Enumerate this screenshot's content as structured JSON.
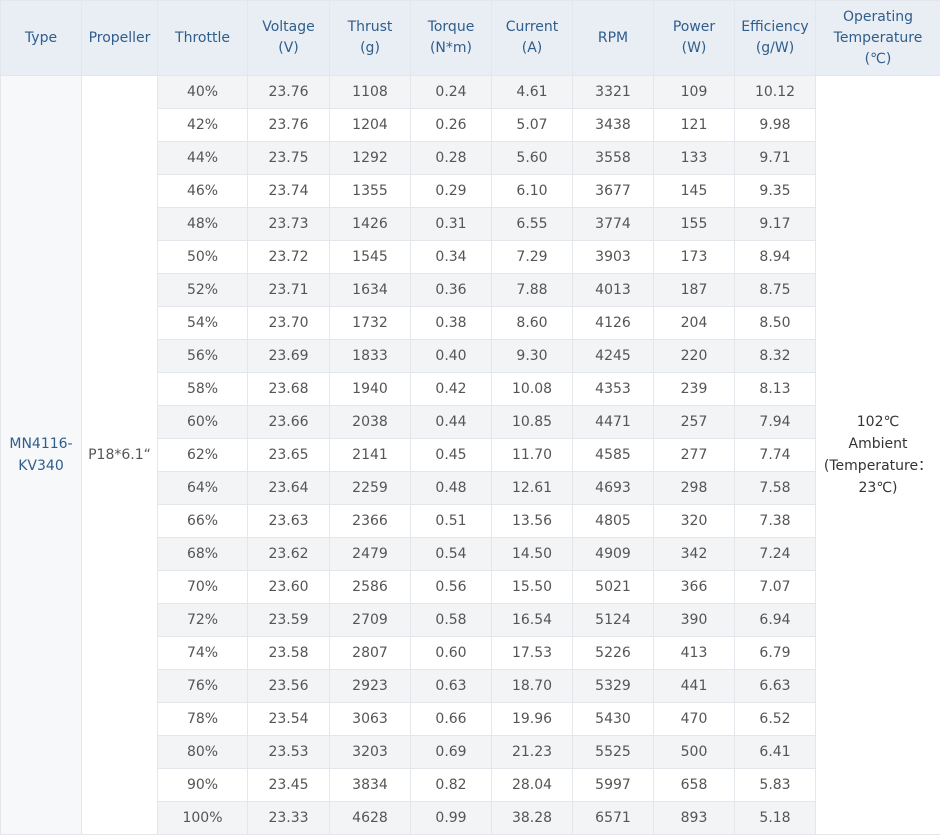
{
  "headers": [
    "Type",
    "Propeller",
    "Throttle",
    "Voltage\n(V)",
    "Thrust\n(g)",
    "Torque\n(N*m)",
    "Current\n(A)",
    "RPM",
    "Power\n(W)",
    "Efficiency\n(g/W)",
    "Operating\nTemperature\n(℃)"
  ],
  "type": "MN4116-\nKV340",
  "propeller": "P18*6.1“",
  "temperature": "102℃\nAmbient\n(Temperature：\n23℃)",
  "rows": [
    [
      "40%",
      "23.76",
      "1108",
      "0.24",
      "4.61",
      "3321",
      "109",
      "10.12"
    ],
    [
      "42%",
      "23.76",
      "1204",
      "0.26",
      "5.07",
      "3438",
      "121",
      "9.98"
    ],
    [
      "44%",
      "23.75",
      "1292",
      "0.28",
      "5.60",
      "3558",
      "133",
      "9.71"
    ],
    [
      "46%",
      "23.74",
      "1355",
      "0.29",
      "6.10",
      "3677",
      "145",
      "9.35"
    ],
    [
      "48%",
      "23.73",
      "1426",
      "0.31",
      "6.55",
      "3774",
      "155",
      "9.17"
    ],
    [
      "50%",
      "23.72",
      "1545",
      "0.34",
      "7.29",
      "3903",
      "173",
      "8.94"
    ],
    [
      "52%",
      "23.71",
      "1634",
      "0.36",
      "7.88",
      "4013",
      "187",
      "8.75"
    ],
    [
      "54%",
      "23.70",
      "1732",
      "0.38",
      "8.60",
      "4126",
      "204",
      "8.50"
    ],
    [
      "56%",
      "23.69",
      "1833",
      "0.40",
      "9.30",
      "4245",
      "220",
      "8.32"
    ],
    [
      "58%",
      "23.68",
      "1940",
      "0.42",
      "10.08",
      "4353",
      "239",
      "8.13"
    ],
    [
      "60%",
      "23.66",
      "2038",
      "0.44",
      "10.85",
      "4471",
      "257",
      "7.94"
    ],
    [
      "62%",
      "23.65",
      "2141",
      "0.45",
      "11.70",
      "4585",
      "277",
      "7.74"
    ],
    [
      "64%",
      "23.64",
      "2259",
      "0.48",
      "12.61",
      "4693",
      "298",
      "7.58"
    ],
    [
      "66%",
      "23.63",
      "2366",
      "0.51",
      "13.56",
      "4805",
      "320",
      "7.38"
    ],
    [
      "68%",
      "23.62",
      "2479",
      "0.54",
      "14.50",
      "4909",
      "342",
      "7.24"
    ],
    [
      "70%",
      "23.60",
      "2586",
      "0.56",
      "15.50",
      "5021",
      "366",
      "7.07"
    ],
    [
      "72%",
      "23.59",
      "2709",
      "0.58",
      "16.54",
      "5124",
      "390",
      "6.94"
    ],
    [
      "74%",
      "23.58",
      "2807",
      "0.60",
      "17.53",
      "5226",
      "413",
      "6.79"
    ],
    [
      "76%",
      "23.56",
      "2923",
      "0.63",
      "18.70",
      "5329",
      "441",
      "6.63"
    ],
    [
      "78%",
      "23.54",
      "3063",
      "0.66",
      "19.96",
      "5430",
      "470",
      "6.52"
    ],
    [
      "80%",
      "23.53",
      "3203",
      "0.69",
      "21.23",
      "5525",
      "500",
      "6.41"
    ],
    [
      "90%",
      "23.45",
      "3834",
      "0.82",
      "28.04",
      "5997",
      "658",
      "5.83"
    ],
    [
      "100%",
      "23.33",
      "4628",
      "0.99",
      "38.28",
      "6571",
      "893",
      "5.18"
    ]
  ]
}
